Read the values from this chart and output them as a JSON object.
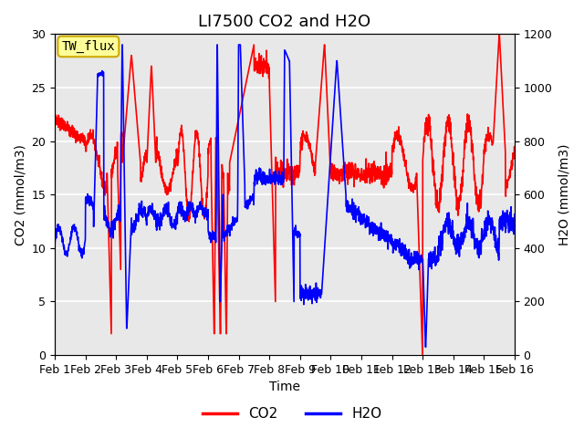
{
  "title": "LI7500 CO2 and H2O",
  "xlabel": "Time",
  "ylabel_left": "CO2 (mmol/m3)",
  "ylabel_right": "H2O (mmol/m3)",
  "xlim": [
    0,
    15
  ],
  "ylim_left": [
    0,
    30
  ],
  "ylim_right": [
    0,
    1200
  ],
  "xtick_labels": [
    "Feb 1",
    "Feb 2",
    "Feb 3",
    "Feb 4",
    "Feb 5",
    "Feb 6",
    "Feb 7",
    "Feb 8",
    "Feb 9",
    "Feb 10",
    "Feb 11",
    "Feb 12",
    "Feb 13",
    "Feb 14",
    "Feb 15",
    "Feb 16"
  ],
  "yticks_left": [
    0,
    5,
    10,
    15,
    20,
    25,
    30
  ],
  "yticks_right": [
    0,
    200,
    400,
    600,
    800,
    1000,
    1200
  ],
  "site_label": "TW_flux",
  "co2_color": "#FF0000",
  "h2o_color": "#0000FF",
  "bg_color": "#E8E8E8",
  "grid_color": "#FFFFFF",
  "linewidth": 1.2,
  "title_fontsize": 13,
  "label_fontsize": 10,
  "tick_fontsize": 9
}
